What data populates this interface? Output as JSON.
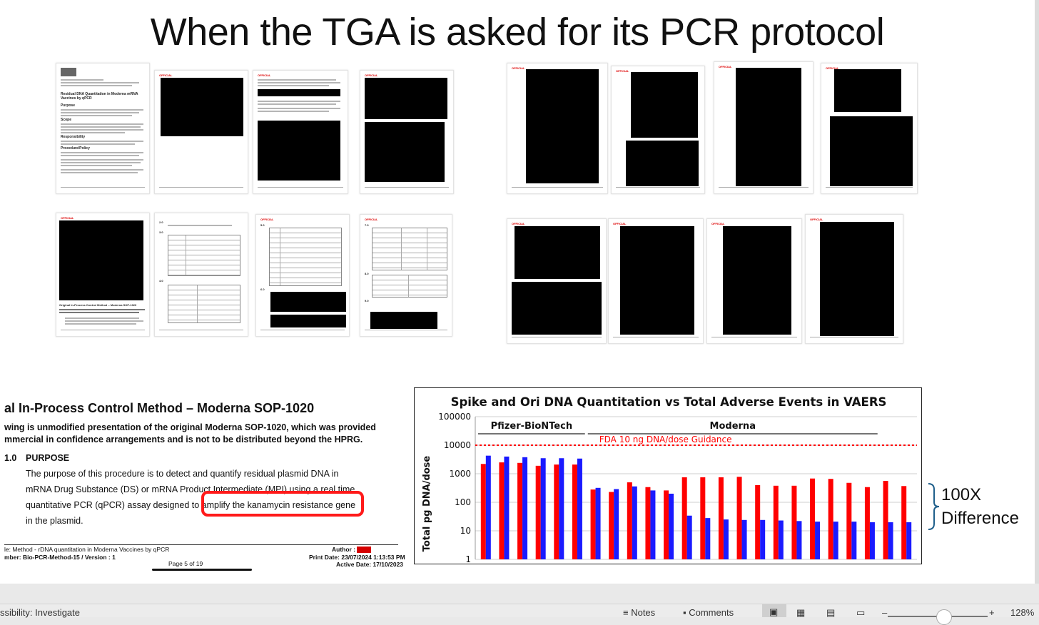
{
  "slide": {
    "title": "When the TGA is asked for its PCR protocol",
    "thumbnails": {
      "official_label": "OFFICIAL",
      "doc_title": "Residual DNA Quantitation in Moderna mRNA Vaccines by qPCR",
      "doc_title_line1": "Residual DNA Quantitation in Moderna mRNA",
      "doc_title_line2": "Vaccines by qPCR",
      "sections": [
        "Purpose",
        "Scope",
        "Responsibility",
        "Procedure/Policy"
      ],
      "original_sop_heading": "Original In-Process Control Method – Moderna SOP-1020",
      "section_numbers": [
        "2.0",
        "3.0",
        "4.0",
        "5.0",
        "6.0",
        "7.0",
        "8.0",
        "9.0"
      ]
    },
    "sop_excerpt": {
      "heading": "al In-Process Control Method – Moderna SOP-1020",
      "intro_line1": "wing is unmodified presentation of the original Moderna SOP-1020, which was provided",
      "intro_line2": "mmercial in confidence arrangements and is not to be distributed beyond the HPRG.",
      "section_number": "1.0",
      "section_title": "PURPOSE",
      "body_lines": [
        "The purpose of this procedure is to detect and quantify residual plasmid DNA in",
        "mRNA Drug Substance (DS) or mRNA Product Intermediate (MPI) using a real time",
        "quantitative PCR (qPCR) assay designed to amplify the kanamycin resistance gene",
        "in the plasmid."
      ],
      "highlighted_text": "amplify the kanamycin resistance gene",
      "footer_left1": "le: Method - rDNA quantitation in Moderna Vaccines by qPCR",
      "footer_left2": "mber: Bio-PCR-Method-15 / Version : 1",
      "footer_author": "Author :",
      "footer_print": "Print Date: 23/07/2024 1:13:53 PM",
      "footer_active": "Active Date: 17/10/2023",
      "page_label": "Page 5 of 19"
    },
    "annotation": {
      "line1": "100X",
      "line2": "Difference"
    }
  },
  "chart_data": {
    "type": "bar",
    "title": "Spike and Ori DNA Quantitation vs Total Adverse Events in VAERS",
    "ylabel": "Total pg DNA/dose",
    "yscale": "log",
    "ylim": [
      1,
      100000
    ],
    "ytick_labels": [
      "1",
      "10",
      "100",
      "1000",
      "10000",
      "100000"
    ],
    "groups": [
      {
        "name": "Pfizer-BioNTech",
        "start": 0,
        "end": 5
      },
      {
        "name": "Moderna",
        "start": 6,
        "end": 21
      }
    ],
    "guidance_line": {
      "value": 10000,
      "label": "FDA 10 ng DNA/dose Guidance",
      "color": "#ff0000"
    },
    "series": [
      {
        "color": "#ff0000",
        "values": [
          2200,
          2500,
          2400,
          1900,
          2100,
          2100,
          280,
          230,
          500,
          340,
          260,
          750,
          750,
          750,
          780,
          400,
          380,
          380,
          680,
          660,
          480,
          340,
          560,
          370
        ]
      },
      {
        "color": "#1a1aff",
        "values": [
          4300,
          4000,
          3800,
          3500,
          3500,
          3400,
          320,
          290,
          360,
          260,
          200,
          34,
          28,
          25,
          24,
          24,
          23,
          22,
          21,
          21,
          21,
          20,
          20,
          20
        ]
      }
    ],
    "grid": true,
    "legend": "none"
  },
  "statusbar": {
    "left": "ssibility: Investigate",
    "notes": "Notes",
    "comments": "Comments",
    "zoom": "128%"
  },
  "colors": {
    "highlight_box": "#ff1a1a",
    "redaction": "#000000",
    "official_red": "#dd0000"
  }
}
